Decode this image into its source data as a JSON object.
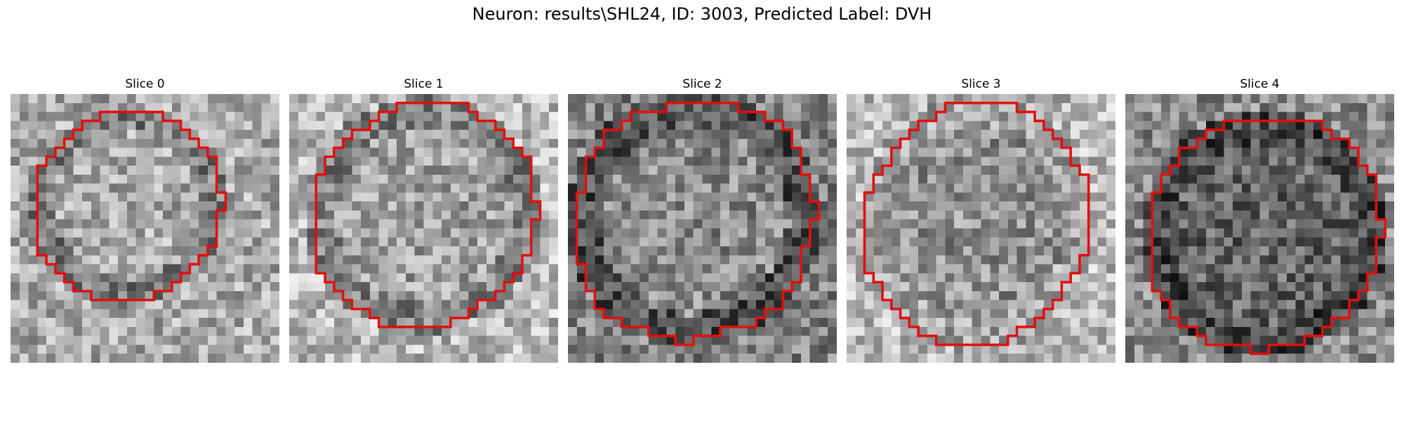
{
  "figure": {
    "title": "Neuron: results\\SHL24, ID: 3003, Predicted Label: DVH"
  },
  "panels": [
    {
      "label": "Slice 0"
    },
    {
      "label": "Slice 1"
    },
    {
      "label": "Slice 2"
    },
    {
      "label": "Slice 3"
    },
    {
      "label": "Slice 4"
    }
  ],
  "style": {
    "contour_color": "#e01010",
    "colormap": "grayscale"
  }
}
